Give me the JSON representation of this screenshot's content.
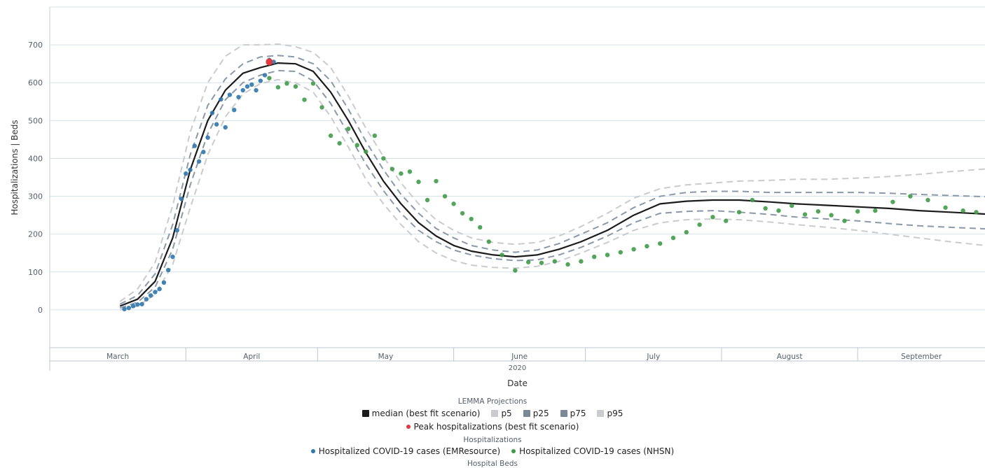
{
  "chart_data": {
    "type": "line",
    "ylabel": "Hospitalizations | Beds",
    "xlabel": "Date",
    "year": "2020",
    "ylim": [
      -100,
      800
    ],
    "yticks": [
      0,
      100,
      200,
      300,
      400,
      500,
      600,
      700
    ],
    "months": [
      "March",
      "April",
      "May",
      "June",
      "July",
      "August",
      "September"
    ],
    "x_range": [
      "2020-03-01",
      "2020-09-30"
    ],
    "grid": true,
    "colors": {
      "median": "#1b1b1b",
      "p25_p75": "#8a98a8",
      "p5_p95": "#c9cbce",
      "peak": "#e0393e",
      "emresource": "#2f77ad",
      "nhsn": "#3f9b48"
    },
    "series": [
      {
        "name": "median (best fit scenario)",
        "style": "solid",
        "x": [
          "2020-03-17",
          "2020-03-21",
          "2020-03-25",
          "2020-03-29",
          "2020-04-02",
          "2020-04-06",
          "2020-04-10",
          "2020-04-14",
          "2020-04-18",
          "2020-04-22",
          "2020-04-26",
          "2020-04-30",
          "2020-05-04",
          "2020-05-08",
          "2020-05-12",
          "2020-05-16",
          "2020-05-20",
          "2020-05-24",
          "2020-05-28",
          "2020-06-01",
          "2020-06-05",
          "2020-06-10",
          "2020-06-15",
          "2020-06-20",
          "2020-06-25",
          "2020-06-30",
          "2020-07-06",
          "2020-07-12",
          "2020-07-18",
          "2020-07-24",
          "2020-07-30",
          "2020-08-05",
          "2020-08-12",
          "2020-08-18",
          "2020-08-25",
          "2020-09-01",
          "2020-09-08",
          "2020-09-15",
          "2020-09-22",
          "2020-09-30"
        ],
        "y": [
          10,
          28,
          75,
          190,
          370,
          500,
          580,
          625,
          640,
          652,
          650,
          630,
          575,
          500,
          415,
          340,
          280,
          230,
          195,
          170,
          155,
          145,
          140,
          145,
          160,
          180,
          210,
          250,
          280,
          287,
          290,
          290,
          285,
          280,
          276,
          272,
          268,
          262,
          258,
          253
        ]
      },
      {
        "name": "p25",
        "style": "dashed",
        "x": [
          "2020-03-17",
          "2020-03-21",
          "2020-03-25",
          "2020-03-29",
          "2020-04-02",
          "2020-04-06",
          "2020-04-10",
          "2020-04-14",
          "2020-04-18",
          "2020-04-22",
          "2020-04-26",
          "2020-04-30",
          "2020-05-04",
          "2020-05-08",
          "2020-05-12",
          "2020-05-16",
          "2020-05-20",
          "2020-05-24",
          "2020-05-28",
          "2020-06-01",
          "2020-06-05",
          "2020-06-10",
          "2020-06-15",
          "2020-06-20",
          "2020-06-25",
          "2020-06-30",
          "2020-07-06",
          "2020-07-12",
          "2020-07-18",
          "2020-07-24",
          "2020-07-30",
          "2020-08-05",
          "2020-08-12",
          "2020-08-18",
          "2020-08-25",
          "2020-09-01",
          "2020-09-08",
          "2020-09-15",
          "2020-09-22",
          "2020-09-30"
        ],
        "y": [
          5,
          20,
          60,
          160,
          330,
          465,
          555,
          600,
          620,
          632,
          630,
          605,
          545,
          465,
          385,
          315,
          255,
          210,
          180,
          158,
          145,
          135,
          130,
          132,
          145,
          165,
          195,
          230,
          255,
          260,
          262,
          258,
          252,
          245,
          240,
          235,
          228,
          222,
          218,
          214
        ]
      },
      {
        "name": "p75",
        "style": "dashed",
        "x": [
          "2020-03-17",
          "2020-03-21",
          "2020-03-25",
          "2020-03-29",
          "2020-04-02",
          "2020-04-06",
          "2020-04-10",
          "2020-04-14",
          "2020-04-18",
          "2020-04-22",
          "2020-04-26",
          "2020-04-30",
          "2020-05-04",
          "2020-05-08",
          "2020-05-12",
          "2020-05-16",
          "2020-05-20",
          "2020-05-24",
          "2020-05-28",
          "2020-06-01",
          "2020-06-05",
          "2020-06-10",
          "2020-06-15",
          "2020-06-20",
          "2020-06-25",
          "2020-06-30",
          "2020-07-06",
          "2020-07-12",
          "2020-07-18",
          "2020-07-24",
          "2020-07-30",
          "2020-08-05",
          "2020-08-12",
          "2020-08-18",
          "2020-08-25",
          "2020-09-01",
          "2020-09-08",
          "2020-09-15",
          "2020-09-22",
          "2020-09-30"
        ],
        "y": [
          15,
          38,
          95,
          225,
          410,
          540,
          610,
          650,
          668,
          672,
          668,
          650,
          605,
          530,
          445,
          370,
          305,
          255,
          215,
          190,
          170,
          158,
          152,
          158,
          175,
          200,
          230,
          270,
          300,
          310,
          313,
          313,
          310,
          310,
          310,
          310,
          308,
          305,
          302,
          299
        ]
      },
      {
        "name": "p5",
        "style": "dashed",
        "x": [
          "2020-03-17",
          "2020-03-21",
          "2020-03-25",
          "2020-03-29",
          "2020-04-02",
          "2020-04-06",
          "2020-04-10",
          "2020-04-14",
          "2020-04-18",
          "2020-04-22",
          "2020-04-26",
          "2020-04-30",
          "2020-05-04",
          "2020-05-08",
          "2020-05-12",
          "2020-05-16",
          "2020-05-20",
          "2020-05-24",
          "2020-05-28",
          "2020-06-01",
          "2020-06-05",
          "2020-06-10",
          "2020-06-15",
          "2020-06-20",
          "2020-06-25",
          "2020-06-30",
          "2020-07-06",
          "2020-07-12",
          "2020-07-18",
          "2020-07-24",
          "2020-07-30",
          "2020-08-05",
          "2020-08-12",
          "2020-08-18",
          "2020-08-25",
          "2020-09-01",
          "2020-09-08",
          "2020-09-15",
          "2020-09-22",
          "2020-09-30"
        ],
        "y": [
          0,
          10,
          40,
          120,
          270,
          410,
          510,
          570,
          598,
          608,
          600,
          575,
          510,
          430,
          345,
          280,
          225,
          180,
          150,
          130,
          118,
          112,
          110,
          115,
          128,
          150,
          178,
          210,
          230,
          238,
          240,
          238,
          232,
          225,
          218,
          210,
          200,
          190,
          180,
          170
        ]
      },
      {
        "name": "p95",
        "style": "dashed",
        "x": [
          "2020-03-17",
          "2020-03-21",
          "2020-03-25",
          "2020-03-29",
          "2020-04-02",
          "2020-04-06",
          "2020-04-10",
          "2020-04-14",
          "2020-04-18",
          "2020-04-22",
          "2020-04-26",
          "2020-04-30",
          "2020-05-04",
          "2020-05-08",
          "2020-05-12",
          "2020-05-16",
          "2020-05-20",
          "2020-05-24",
          "2020-05-28",
          "2020-06-01",
          "2020-06-05",
          "2020-06-10",
          "2020-06-15",
          "2020-06-20",
          "2020-06-25",
          "2020-06-30",
          "2020-07-06",
          "2020-07-12",
          "2020-07-18",
          "2020-07-24",
          "2020-07-30",
          "2020-08-05",
          "2020-08-12",
          "2020-08-18",
          "2020-08-25",
          "2020-09-01",
          "2020-09-08",
          "2020-09-15",
          "2020-09-22",
          "2020-09-30"
        ],
        "y": [
          22,
          55,
          125,
          275,
          470,
          600,
          670,
          700,
          700,
          702,
          695,
          680,
          640,
          565,
          480,
          405,
          335,
          280,
          238,
          210,
          190,
          178,
          173,
          178,
          195,
          220,
          255,
          295,
          320,
          330,
          335,
          340,
          342,
          345,
          345,
          348,
          352,
          358,
          365,
          372
        ]
      }
    ],
    "peak": {
      "name": "Peak hospitalizations (best fit scenario)",
      "x": "2020-04-20",
      "y": 655
    },
    "points": [
      {
        "name": "Hospitalized COVID-19 cases (EMResource)",
        "x": [
          "2020-03-18",
          "2020-03-19",
          "2020-03-20",
          "2020-03-21",
          "2020-03-22",
          "2020-03-23",
          "2020-03-24",
          "2020-03-25",
          "2020-03-26",
          "2020-03-27",
          "2020-03-28",
          "2020-03-29",
          "2020-03-30",
          "2020-03-31",
          "2020-04-01",
          "2020-04-02",
          "2020-04-03",
          "2020-04-04",
          "2020-04-05",
          "2020-04-06",
          "2020-04-07",
          "2020-04-08",
          "2020-04-09",
          "2020-04-10",
          "2020-04-11",
          "2020-04-12",
          "2020-04-13",
          "2020-04-14",
          "2020-04-15",
          "2020-04-16",
          "2020-04-17",
          "2020-04-18",
          "2020-04-19",
          "2020-04-20",
          "2020-04-21"
        ],
        "y": [
          2,
          5,
          10,
          14,
          15,
          28,
          38,
          47,
          55,
          72,
          105,
          140,
          210,
          293,
          360,
          370,
          433,
          392,
          417,
          455,
          520,
          490,
          556,
          482,
          568,
          528,
          562,
          580,
          590,
          595,
          580,
          605,
          620,
          660,
          655
        ]
      },
      {
        "name": "Hospitalized COVID-19 cases (NHSN)",
        "x": [
          "2020-04-20",
          "2020-04-22",
          "2020-04-24",
          "2020-04-26",
          "2020-04-28",
          "2020-04-30",
          "2020-05-02",
          "2020-05-04",
          "2020-05-06",
          "2020-05-08",
          "2020-05-10",
          "2020-05-12",
          "2020-05-14",
          "2020-05-16",
          "2020-05-18",
          "2020-05-20",
          "2020-05-22",
          "2020-05-24",
          "2020-05-26",
          "2020-05-28",
          "2020-05-30",
          "2020-06-01",
          "2020-06-03",
          "2020-06-05",
          "2020-06-07",
          "2020-06-09",
          "2020-06-12",
          "2020-06-15",
          "2020-06-18",
          "2020-06-21",
          "2020-06-24",
          "2020-06-27",
          "2020-06-30",
          "2020-07-03",
          "2020-07-06",
          "2020-07-09",
          "2020-07-12",
          "2020-07-15",
          "2020-07-18",
          "2020-07-21",
          "2020-07-24",
          "2020-07-27",
          "2020-07-30",
          "2020-08-02",
          "2020-08-05",
          "2020-08-08",
          "2020-08-11",
          "2020-08-14",
          "2020-08-17",
          "2020-08-20",
          "2020-08-23",
          "2020-08-26",
          "2020-08-29",
          "2020-09-01",
          "2020-09-05",
          "2020-09-09",
          "2020-09-13",
          "2020-09-17",
          "2020-09-21",
          "2020-09-25",
          "2020-09-28"
        ],
        "y": [
          612,
          588,
          598,
          590,
          555,
          598,
          535,
          460,
          440,
          478,
          435,
          418,
          460,
          400,
          372,
          360,
          365,
          338,
          290,
          340,
          300,
          280,
          255,
          240,
          218,
          180,
          145,
          104,
          126,
          124,
          128,
          120,
          128,
          140,
          145,
          152,
          160,
          168,
          175,
          190,
          205,
          225,
          245,
          235,
          258,
          290,
          268,
          262,
          275,
          252,
          260,
          250,
          235,
          260,
          262,
          285,
          300,
          290,
          270,
          262,
          258
        ]
      }
    ]
  },
  "legend": {
    "projections_title": "LEMMA Projections",
    "median_label": "median (best fit scenario)",
    "p5_label": "p5",
    "p25_label": "p25",
    "p75_label": "p75",
    "p95_label": "p95",
    "peak_label": "Peak hospitalizations (best fit scenario)",
    "hospitalizations_title": "Hospitalizations",
    "emresource_label": "Hospitalized COVID-19 cases (EMResource)",
    "nhsn_label": "Hospitalized COVID-19 cases (NHSN)",
    "beds_title": "Hospital Beds"
  }
}
